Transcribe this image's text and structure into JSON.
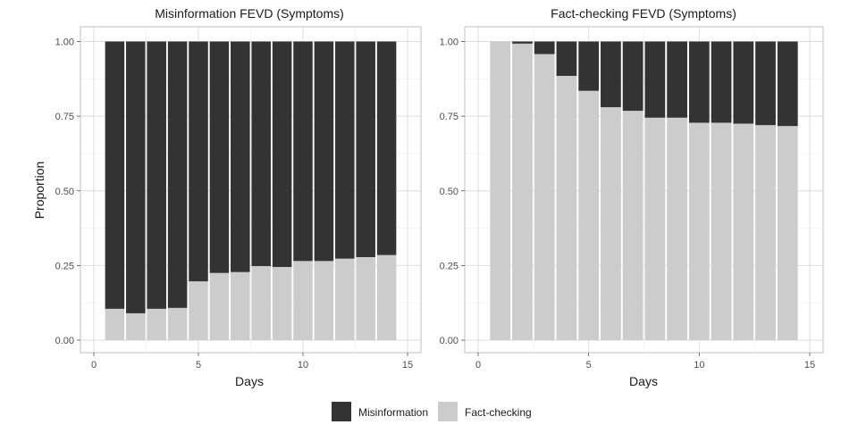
{
  "chart_data": [
    {
      "type": "bar",
      "stacked": true,
      "title": "Misinformation FEVD (Symptoms)",
      "xlabel": "Days",
      "ylabel": "Proportion",
      "xlim": [
        0,
        15
      ],
      "ylim": [
        0,
        1
      ],
      "x_ticks": [
        "0",
        "5",
        "10",
        "15"
      ],
      "y_ticks": [
        "0.00",
        "0.25",
        "0.50",
        "0.75",
        "1.00"
      ],
      "categories": [
        1,
        2,
        3,
        4,
        5,
        6,
        7,
        8,
        9,
        10,
        11,
        12,
        13,
        14
      ],
      "series": [
        {
          "name": "Fact-checking",
          "values": [
            0.105,
            0.09,
            0.105,
            0.108,
            0.197,
            0.225,
            0.228,
            0.248,
            0.245,
            0.265,
            0.265,
            0.273,
            0.278,
            0.285
          ]
        },
        {
          "name": "Misinformation",
          "values": [
            0.895,
            0.91,
            0.895,
            0.892,
            0.803,
            0.775,
            0.772,
            0.752,
            0.755,
            0.735,
            0.735,
            0.727,
            0.722,
            0.715
          ]
        }
      ],
      "grid": true
    },
    {
      "type": "bar",
      "stacked": true,
      "title": "Fact-checking FEVD (Symptoms)",
      "xlabel": "Days",
      "ylabel": "",
      "xlim": [
        0,
        15
      ],
      "ylim": [
        0,
        1
      ],
      "x_ticks": [
        "0",
        "5",
        "10",
        "15"
      ],
      "y_ticks": [
        "0.00",
        "0.25",
        "0.50",
        "0.75",
        "1.00"
      ],
      "categories": [
        1,
        2,
        3,
        4,
        5,
        6,
        7,
        8,
        9,
        10,
        11,
        12,
        13,
        14
      ],
      "series": [
        {
          "name": "Fact-checking",
          "values": [
            1.0,
            0.993,
            0.958,
            0.885,
            0.835,
            0.78,
            0.768,
            0.745,
            0.745,
            0.728,
            0.728,
            0.725,
            0.72,
            0.717
          ]
        },
        {
          "name": "Misinformation",
          "values": [
            0.0,
            0.007,
            0.042,
            0.115,
            0.165,
            0.22,
            0.232,
            0.255,
            0.255,
            0.272,
            0.272,
            0.275,
            0.28,
            0.283
          ]
        }
      ],
      "grid": true
    }
  ],
  "legend": {
    "position": "bottom",
    "items": [
      {
        "label": "Misinformation",
        "color": "#333333"
      },
      {
        "label": "Fact-checking",
        "color": "#cccccc"
      }
    ]
  },
  "colors": {
    "Misinformation": "#333333",
    "Fact-checking": "#cccccc"
  }
}
